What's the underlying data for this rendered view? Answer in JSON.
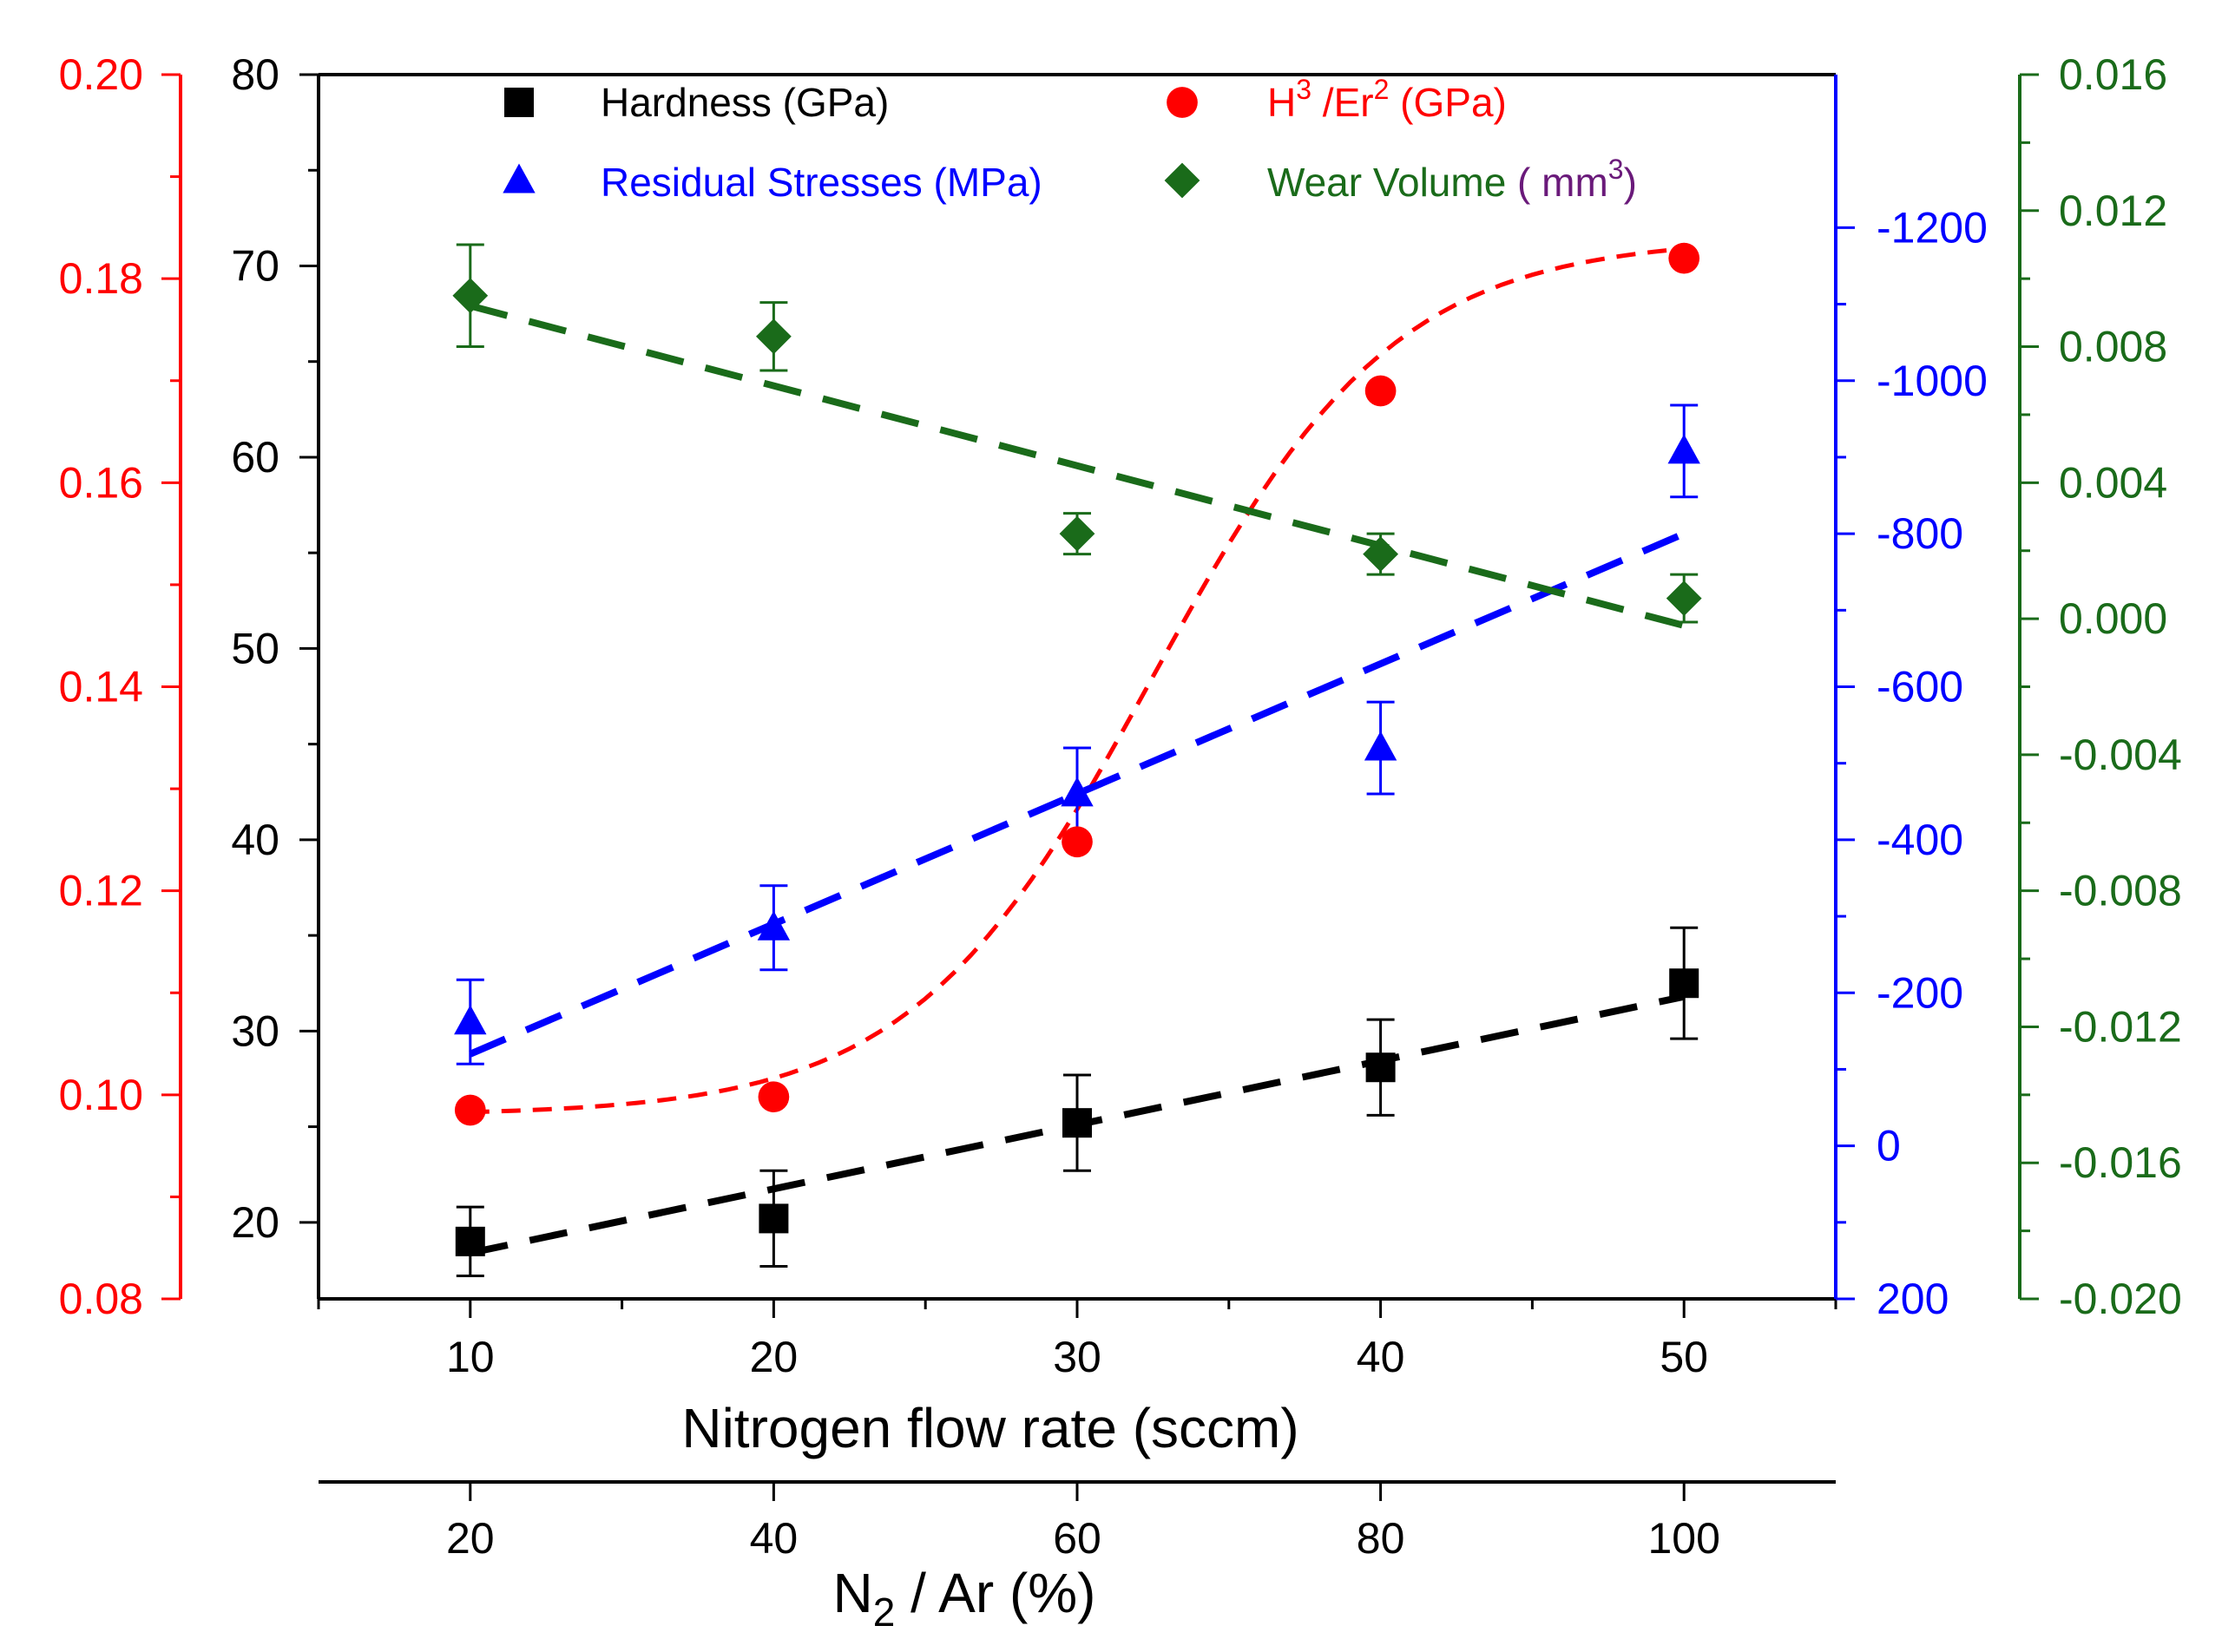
{
  "chart_data": {
    "type": "scatter",
    "x_primary": {
      "label": "Nitrogen flow rate (sccm)",
      "range": [
        5,
        55
      ],
      "ticks": [
        10,
        20,
        30,
        40,
        50
      ],
      "tick_labels": [
        "10",
        "20",
        "30",
        "40",
        "50"
      ]
    },
    "x_secondary": {
      "label_main": "N",
      "label_sub": "2",
      "label_rest": " / Ar (%)",
      "ticks": [
        20,
        40,
        60,
        80,
        100
      ],
      "tick_labels": [
        "20",
        "40",
        "60",
        "80",
        "100"
      ],
      "maps_to_primary": [
        10,
        20,
        30,
        40,
        50
      ]
    },
    "y_axes": [
      {
        "id": "h3er2",
        "side": "left-outer",
        "color": "#ff0000",
        "range": [
          0.08,
          0.2
        ],
        "ticks": [
          0.08,
          0.1,
          0.12,
          0.14,
          0.16,
          0.18,
          0.2
        ],
        "tick_labels": [
          "0.08",
          "0.10",
          "0.12",
          "0.14",
          "0.16",
          "0.18",
          "0.20"
        ]
      },
      {
        "id": "hardness",
        "side": "left-inner",
        "color": "#000000",
        "range": [
          16,
          80
        ],
        "ticks": [
          20,
          30,
          40,
          50,
          60,
          70,
          80
        ],
        "tick_labels": [
          "20",
          "30",
          "40",
          "50",
          "60",
          "70",
          "80"
        ]
      },
      {
        "id": "stress",
        "side": "right-inner",
        "color": "#0000ff",
        "range": [
          200,
          -1400
        ],
        "inverted": true,
        "ticks": [
          200,
          0,
          -200,
          -400,
          -600,
          -800,
          -1000,
          -1200
        ],
        "tick_labels": [
          "200",
          "0",
          "-200",
          "-400",
          "-600",
          "-800",
          "-1000",
          "-1200"
        ]
      },
      {
        "id": "wear",
        "side": "right-outer",
        "color": "#1a6b1a",
        "range": [
          -0.02,
          0.016
        ],
        "ticks": [
          -0.02,
          -0.016,
          -0.012,
          -0.008,
          -0.004,
          0.0,
          0.004,
          0.008,
          0.012,
          0.016
        ],
        "tick_labels": [
          "-0.020",
          "-0.016",
          "-0.012",
          "-0.008",
          "-0.004",
          "0.000",
          "0.004",
          "0.008",
          "0.012",
          "0.016"
        ]
      }
    ],
    "series": [
      {
        "name": "Hardness (GPa)",
        "axis": "hardness",
        "color": "#000000",
        "marker": "square",
        "x": [
          10,
          20,
          30,
          40,
          50
        ],
        "y": [
          19.0,
          20.2,
          25.2,
          28.1,
          32.5
        ],
        "err": [
          1.8,
          2.5,
          2.5,
          2.5,
          2.9
        ],
        "fit": {
          "kind": "linear",
          "x0": 10,
          "x1": 50,
          "y0": 18.4,
          "y1": 31.8
        }
      },
      {
        "name": "H³ /Er² (GPa)",
        "axis": "h3er2",
        "color": "#ff0000",
        "marker": "circle",
        "x": [
          10,
          20,
          30,
          40,
          50
        ],
        "y": [
          0.0985,
          0.0998,
          0.1248,
          0.169,
          0.182
        ],
        "fit": {
          "kind": "sigmoid",
          "base": 0.098,
          "amp": 0.086,
          "center": 32.5,
          "width": 4.0
        }
      },
      {
        "name": "Residual Stresses (MPa)",
        "axis": "stress",
        "color": "#0000ff",
        "marker": "triangle",
        "x": [
          10,
          20,
          30,
          40,
          50
        ],
        "y": [
          -162,
          -285,
          -460,
          -520,
          -908
        ],
        "err": [
          55,
          55,
          60,
          60,
          60
        ],
        "fit": {
          "kind": "linear",
          "x0": 10,
          "x1": 50,
          "y0": -120,
          "y1": -800
        }
      },
      {
        "name": "Wear Volume ( mm³)",
        "axis": "wear",
        "color": "#1a6b1a",
        "marker": "diamond",
        "x": [
          10,
          20,
          30,
          40,
          50
        ],
        "y": [
          0.0095,
          0.0083,
          0.0025,
          0.0019,
          0.0006
        ],
        "err": [
          0.0015,
          0.001,
          0.0006,
          0.0006,
          0.0007
        ],
        "fit": {
          "kind": "linear",
          "x0": 10,
          "x1": 50,
          "y0": 0.0092,
          "y1": -0.0002
        }
      }
    ],
    "legend": {
      "placement": "top-inside",
      "entries": [
        {
          "series": 0,
          "text": "Hardness (GPa)"
        },
        {
          "series": 1,
          "text_main": "H",
          "sup1": "3",
          "text_mid": " /Er",
          "sup2": "2",
          "text_end": " (GPa)"
        },
        {
          "series": 2,
          "text": "Residual Stresses (MPa)"
        },
        {
          "series": 3,
          "text_main": "Wear Volume",
          "text_paren_open": " ( mm",
          "sup": "3",
          "text_paren_close": ")"
        }
      ]
    }
  }
}
